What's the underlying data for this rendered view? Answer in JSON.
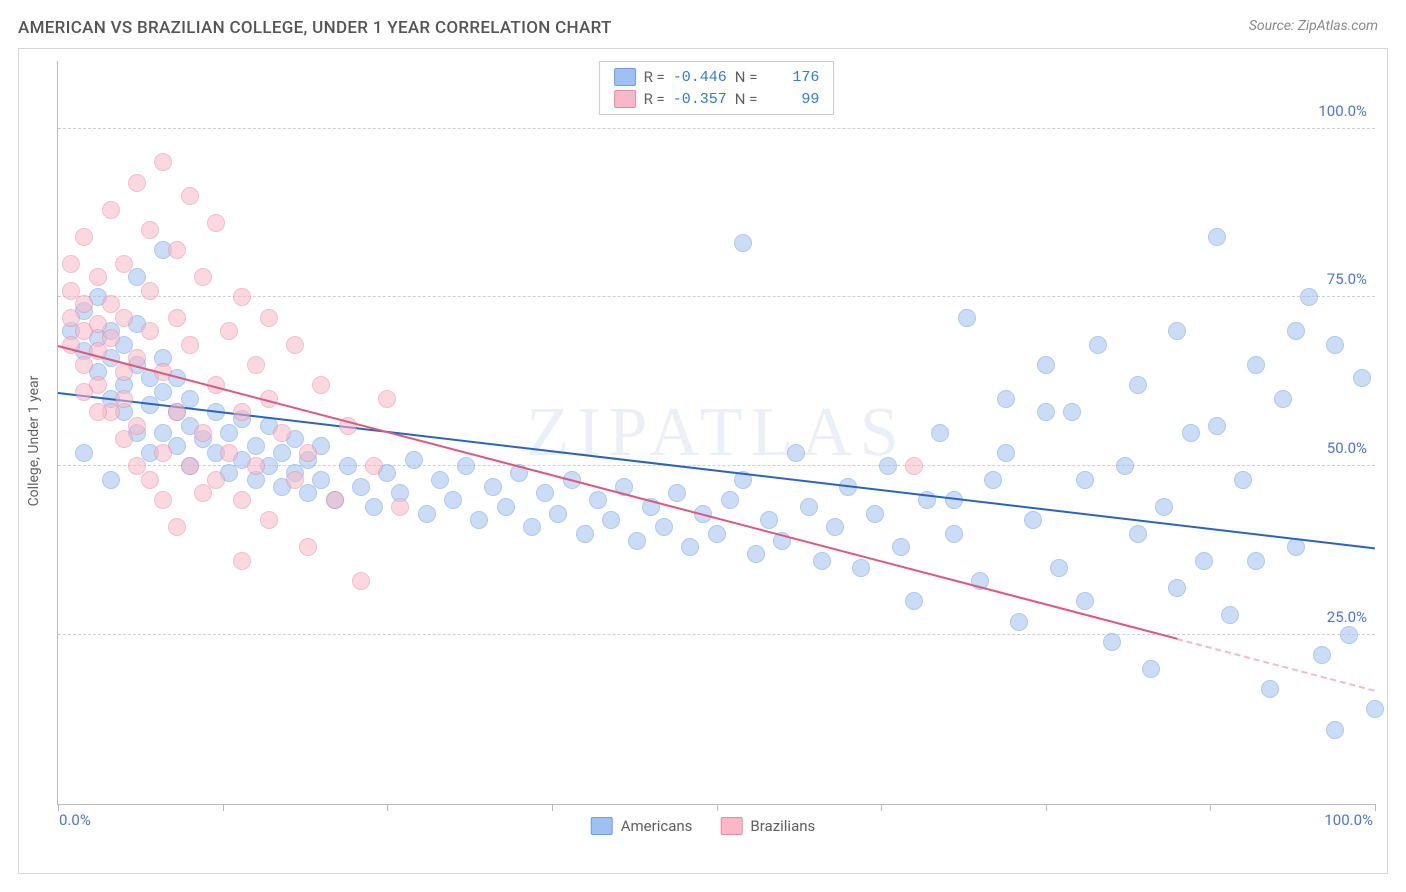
{
  "title": "AMERICAN VS BRAZILIAN COLLEGE, UNDER 1 YEAR CORRELATION CHART",
  "source_label": "Source:",
  "source_name": "ZipAtlas.com",
  "watermark": "ZIPATLAS",
  "y_axis_label": "College, Under 1 year",
  "chart": {
    "type": "scatter",
    "xlim": [
      0,
      100
    ],
    "ylim": [
      0,
      110
    ],
    "x_ticks": [
      0,
      12.5,
      25,
      37.5,
      50,
      62.5,
      75,
      87.5,
      100
    ],
    "x_tick_labels_shown": {
      "0": "0.0%",
      "100": "100.0%"
    },
    "y_gridlines": [
      25,
      50,
      75,
      100
    ],
    "y_tick_labels": {
      "25": "25.0%",
      "50": "50.0%",
      "75": "75.0%",
      "100": "100.0%"
    },
    "background_color": "#ffffff",
    "grid_color": "#d0d0d0",
    "axis_color": "#bbbbbb",
    "marker_radius": 9,
    "marker_opacity": 0.55,
    "line_width": 2.5,
    "series": [
      {
        "name": "Americans",
        "color_fill": "#9fc0f0",
        "color_stroke": "#6e9fe0",
        "line_color": "#2b63c2",
        "R": "-0.446",
        "N": "176",
        "trend": {
          "x1": 0,
          "y1": 61,
          "x2": 100,
          "y2": 38,
          "dash_from_x": null
        },
        "points": [
          [
            1,
            70
          ],
          [
            2,
            67
          ],
          [
            2,
            73
          ],
          [
            3,
            64
          ],
          [
            3,
            69
          ],
          [
            3,
            75
          ],
          [
            4,
            60
          ],
          [
            4,
            66
          ],
          [
            4,
            70
          ],
          [
            5,
            62
          ],
          [
            5,
            68
          ],
          [
            5,
            58
          ],
          [
            6,
            55
          ],
          [
            6,
            65
          ],
          [
            6,
            71
          ],
          [
            7,
            59
          ],
          [
            7,
            63
          ],
          [
            7,
            52
          ],
          [
            8,
            55
          ],
          [
            8,
            61
          ],
          [
            8,
            66
          ],
          [
            9,
            53
          ],
          [
            9,
            58
          ],
          [
            9,
            63
          ],
          [
            10,
            50
          ],
          [
            10,
            56
          ],
          [
            10,
            60
          ],
          [
            11,
            54
          ],
          [
            12,
            52
          ],
          [
            12,
            58
          ],
          [
            13,
            49
          ],
          [
            13,
            55
          ],
          [
            14,
            51
          ],
          [
            14,
            57
          ],
          [
            15,
            48
          ],
          [
            15,
            53
          ],
          [
            16,
            50
          ],
          [
            16,
            56
          ],
          [
            17,
            47
          ],
          [
            17,
            52
          ],
          [
            18,
            49
          ],
          [
            18,
            54
          ],
          [
            19,
            46
          ],
          [
            19,
            51
          ],
          [
            20,
            48
          ],
          [
            20,
            53
          ],
          [
            21,
            45
          ],
          [
            22,
            50
          ],
          [
            23,
            47
          ],
          [
            24,
            44
          ],
          [
            25,
            49
          ],
          [
            26,
            46
          ],
          [
            27,
            51
          ],
          [
            28,
            43
          ],
          [
            29,
            48
          ],
          [
            30,
            45
          ],
          [
            31,
            50
          ],
          [
            32,
            42
          ],
          [
            33,
            47
          ],
          [
            34,
            44
          ],
          [
            35,
            49
          ],
          [
            36,
            41
          ],
          [
            37,
            46
          ],
          [
            38,
            43
          ],
          [
            39,
            48
          ],
          [
            40,
            40
          ],
          [
            41,
            45
          ],
          [
            42,
            42
          ],
          [
            43,
            47
          ],
          [
            44,
            39
          ],
          [
            45,
            44
          ],
          [
            46,
            41
          ],
          [
            47,
            46
          ],
          [
            48,
            38
          ],
          [
            49,
            43
          ],
          [
            50,
            40
          ],
          [
            51,
            45
          ],
          [
            52,
            48
          ],
          [
            53,
            37
          ],
          [
            54,
            42
          ],
          [
            55,
            39
          ],
          [
            56,
            52
          ],
          [
            57,
            44
          ],
          [
            58,
            36
          ],
          [
            59,
            41
          ],
          [
            60,
            47
          ],
          [
            61,
            35
          ],
          [
            62,
            43
          ],
          [
            63,
            50
          ],
          [
            64,
            38
          ],
          [
            65,
            30
          ],
          [
            66,
            45
          ],
          [
            67,
            55
          ],
          [
            68,
            40
          ],
          [
            69,
            72
          ],
          [
            70,
            33
          ],
          [
            71,
            48
          ],
          [
            72,
            60
          ],
          [
            73,
            27
          ],
          [
            74,
            42
          ],
          [
            75,
            65
          ],
          [
            76,
            35
          ],
          [
            77,
            58
          ],
          [
            78,
            30
          ],
          [
            79,
            68
          ],
          [
            80,
            24
          ],
          [
            81,
            50
          ],
          [
            82,
            62
          ],
          [
            83,
            20
          ],
          [
            84,
            44
          ],
          [
            85,
            70
          ],
          [
            86,
            55
          ],
          [
            87,
            36
          ],
          [
            88,
            84
          ],
          [
            89,
            28
          ],
          [
            90,
            48
          ],
          [
            91,
            65
          ],
          [
            92,
            17
          ],
          [
            93,
            60
          ],
          [
            94,
            38
          ],
          [
            95,
            75
          ],
          [
            96,
            22
          ],
          [
            97,
            68
          ],
          [
            98,
            25
          ],
          [
            99,
            63
          ],
          [
            100,
            14
          ],
          [
            52,
            83
          ],
          [
            68,
            45
          ],
          [
            72,
            52
          ],
          [
            75,
            58
          ],
          [
            78,
            48
          ],
          [
            82,
            40
          ],
          [
            85,
            32
          ],
          [
            88,
            56
          ],
          [
            91,
            36
          ],
          [
            94,
            70
          ],
          [
            97,
            11
          ],
          [
            2,
            52
          ],
          [
            4,
            48
          ],
          [
            6,
            78
          ],
          [
            8,
            82
          ]
        ]
      },
      {
        "name": "Brazilians",
        "color_fill": "#f8b8c8",
        "color_stroke": "#e78ba5",
        "line_color": "#e0567d",
        "R": "-0.357",
        "N": "99",
        "trend": {
          "x1": 0,
          "y1": 68,
          "x2": 100,
          "y2": 17,
          "dash_from_x": 85
        },
        "points": [
          [
            1,
            72
          ],
          [
            1,
            68
          ],
          [
            1,
            76
          ],
          [
            1,
            80
          ],
          [
            2,
            65
          ],
          [
            2,
            74
          ],
          [
            2,
            70
          ],
          [
            2,
            84
          ],
          [
            3,
            62
          ],
          [
            3,
            71
          ],
          [
            3,
            67
          ],
          [
            3,
            78
          ],
          [
            4,
            58
          ],
          [
            4,
            69
          ],
          [
            4,
            74
          ],
          [
            4,
            88
          ],
          [
            5,
            60
          ],
          [
            5,
            54
          ],
          [
            5,
            72
          ],
          [
            5,
            80
          ],
          [
            6,
            56
          ],
          [
            6,
            66
          ],
          [
            6,
            50
          ],
          [
            6,
            92
          ],
          [
            7,
            70
          ],
          [
            7,
            48
          ],
          [
            7,
            76
          ],
          [
            8,
            52
          ],
          [
            8,
            64
          ],
          [
            8,
            95
          ],
          [
            8,
            45
          ],
          [
            9,
            58
          ],
          [
            9,
            72
          ],
          [
            9,
            41
          ],
          [
            10,
            50
          ],
          [
            10,
            68
          ],
          [
            10,
            90
          ],
          [
            11,
            55
          ],
          [
            11,
            78
          ],
          [
            12,
            48
          ],
          [
            12,
            62
          ],
          [
            12,
            86
          ],
          [
            13,
            52
          ],
          [
            13,
            70
          ],
          [
            14,
            45
          ],
          [
            14,
            58
          ],
          [
            14,
            75
          ],
          [
            15,
            50
          ],
          [
            15,
            65
          ],
          [
            16,
            42
          ],
          [
            16,
            60
          ],
          [
            16,
            72
          ],
          [
            17,
            55
          ],
          [
            18,
            48
          ],
          [
            18,
            68
          ],
          [
            19,
            38
          ],
          [
            19,
            52
          ],
          [
            20,
            62
          ],
          [
            21,
            45
          ],
          [
            22,
            56
          ],
          [
            23,
            33
          ],
          [
            24,
            50
          ],
          [
            25,
            60
          ],
          [
            26,
            44
          ],
          [
            14,
            36
          ],
          [
            7,
            85
          ],
          [
            5,
            64
          ],
          [
            3,
            58
          ],
          [
            2,
            61
          ],
          [
            9,
            82
          ],
          [
            11,
            46
          ],
          [
            65,
            50
          ]
        ]
      }
    ]
  },
  "legend_box": {
    "r_label": "R =",
    "n_label": "N ="
  },
  "bottom_legend": [
    {
      "label": "Americans",
      "fill": "#9fc0f0",
      "stroke": "#6e9fe0"
    },
    {
      "label": "Brazilians",
      "fill": "#f8b8c8",
      "stroke": "#e78ba5"
    }
  ],
  "colors": {
    "title_text": "#555555",
    "source_text": "#888888",
    "axis_label_text": "#606060",
    "tick_label_text": "#4a76d4",
    "legend_value": "#2b7de1"
  }
}
